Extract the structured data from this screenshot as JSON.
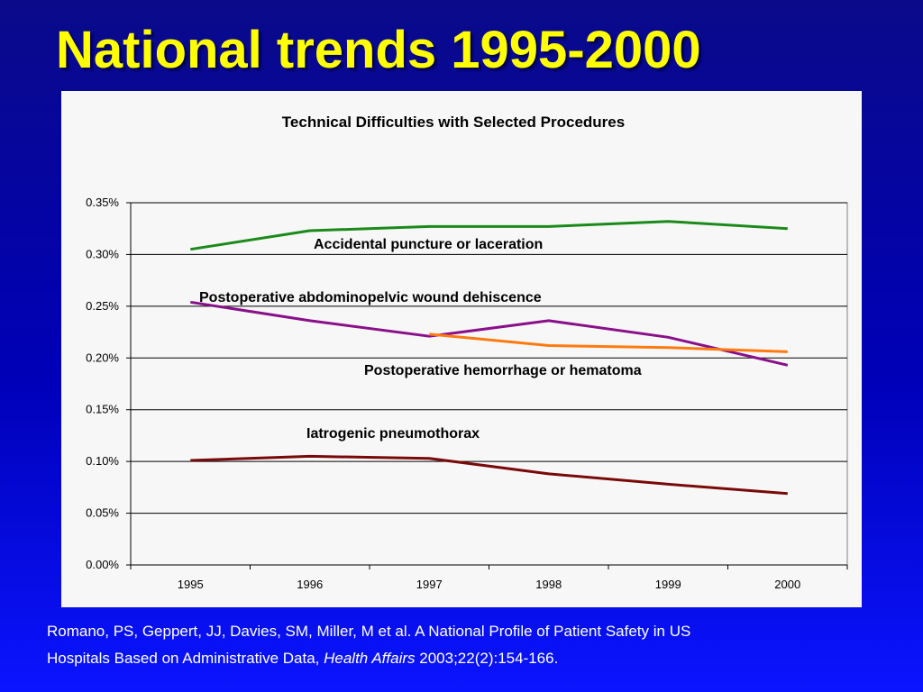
{
  "slide": {
    "title": "National trends 1995-2000",
    "citation": {
      "line1": "Romano, PS, Geppert, JJ, Davies, SM, Miller, M et al. A National Profile of Patient Safety in US",
      "line2_pre": "Hospitals Based on Administrative Data, ",
      "line2_journal": "Health Affairs",
      "line2_post": " 2003;22(2):154-166."
    }
  },
  "chart_data": {
    "type": "line",
    "title": "Technical Difficulties with Selected Procedures",
    "xlabel": "",
    "ylabel": "",
    "x": [
      "1995",
      "1996",
      "1997",
      "1998",
      "1999",
      "2000"
    ],
    "ylim": [
      0,
      0.35
    ],
    "yticks": [
      "0.00%",
      "0.05%",
      "0.10%",
      "0.15%",
      "0.20%",
      "0.25%",
      "0.30%",
      "0.35%"
    ],
    "grid": true,
    "series": [
      {
        "name": "Accidental puncture or laceration",
        "color": "#1a8a1a",
        "values": [
          0.305,
          0.323,
          0.327,
          0.327,
          0.332,
          0.325
        ]
      },
      {
        "name": "Postoperative abdominopelvic wound dehiscence",
        "color": "#8a108a",
        "values": [
          0.254,
          0.236,
          0.221,
          0.236,
          0.22,
          0.193
        ]
      },
      {
        "name": "Postoperative hemorrhage or hematoma",
        "color": "#ff7a10",
        "values": [
          null,
          null,
          0.223,
          0.212,
          0.21,
          0.206
        ]
      },
      {
        "name": "Iatrogenic pneumothorax",
        "color": "#7a0a0a",
        "values": [
          0.101,
          0.105,
          0.103,
          0.088,
          0.078,
          0.069
        ]
      }
    ]
  }
}
